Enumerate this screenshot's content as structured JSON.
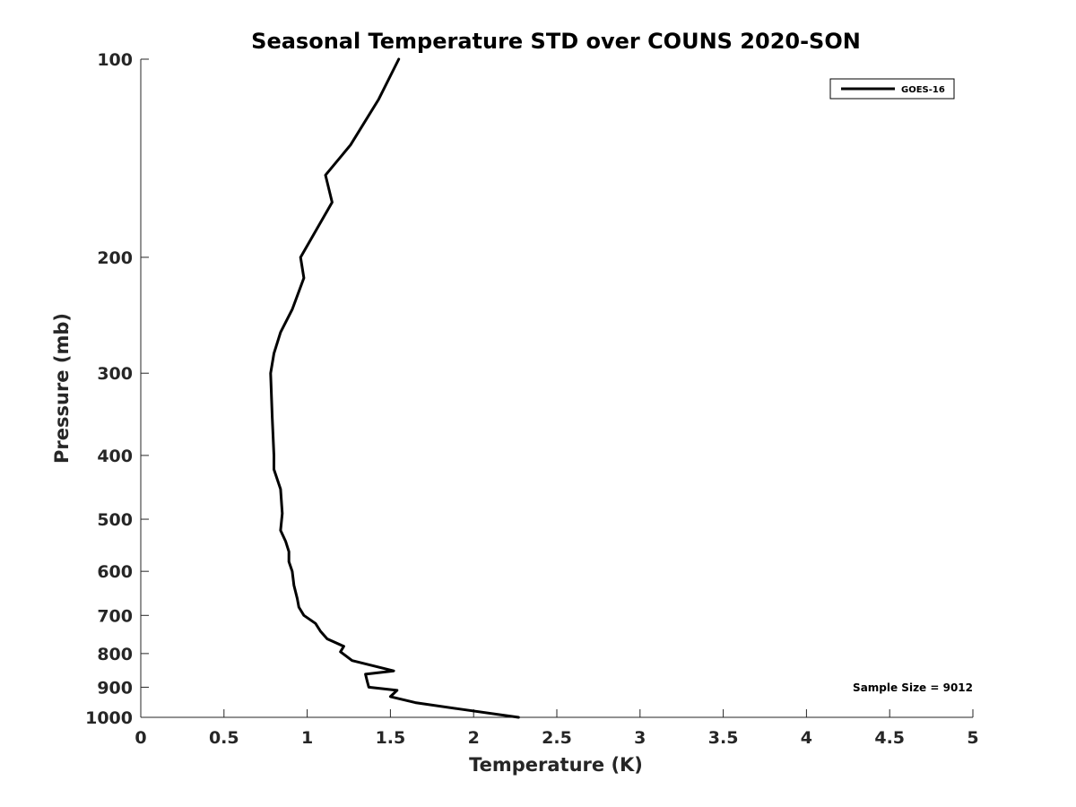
{
  "chart_data": {
    "type": "line",
    "title": "Seasonal Temperature STD over COUNS  2020-SON",
    "xlabel": "Temperature (K)",
    "ylabel": "Pressure (mb)",
    "xlim": [
      0,
      5
    ],
    "ylim": [
      100,
      1000
    ],
    "yscale": "log",
    "y_reversed": true,
    "grid": false,
    "xticks": [
      0,
      0.5,
      1,
      1.5,
      2,
      2.5,
      3,
      3.5,
      4,
      4.5,
      5
    ],
    "xtick_labels": [
      "0",
      "0.5",
      "1",
      "1.5",
      "2",
      "2.5",
      "3",
      "3.5",
      "4",
      "4.5",
      "5"
    ],
    "yticks": [
      100,
      200,
      300,
      400,
      500,
      600,
      700,
      800,
      900,
      1000
    ],
    "ytick_labels": [
      "100",
      "200",
      "300",
      "400",
      "500",
      "600",
      "700",
      "800",
      "900",
      "1000"
    ],
    "legend_position": "top-right",
    "annotation": "Sample Size = 9012",
    "series": [
      {
        "name": "GOES-16",
        "color": "#000000",
        "x": [
          1.55,
          1.43,
          1.26,
          1.11,
          1.15,
          0.96,
          0.98,
          0.91,
          0.84,
          0.8,
          0.78,
          0.79,
          0.8,
          0.8,
          0.84,
          0.85,
          0.84,
          0.87,
          0.89,
          0.89,
          0.91,
          0.92,
          0.94,
          0.95,
          0.98,
          1.05,
          1.08,
          1.12,
          1.22,
          1.2,
          1.27,
          1.52,
          1.35,
          1.36,
          1.37,
          1.54,
          1.5,
          1.65,
          1.9,
          2.27
        ],
        "y": [
          100,
          115,
          135,
          150,
          165,
          200,
          215,
          240,
          260,
          280,
          300,
          350,
          400,
          420,
          450,
          490,
          520,
          540,
          560,
          580,
          600,
          630,
          660,
          680,
          700,
          720,
          740,
          760,
          780,
          795,
          820,
          850,
          860,
          880,
          900,
          910,
          930,
          950,
          970,
          1000
        ]
      }
    ]
  }
}
